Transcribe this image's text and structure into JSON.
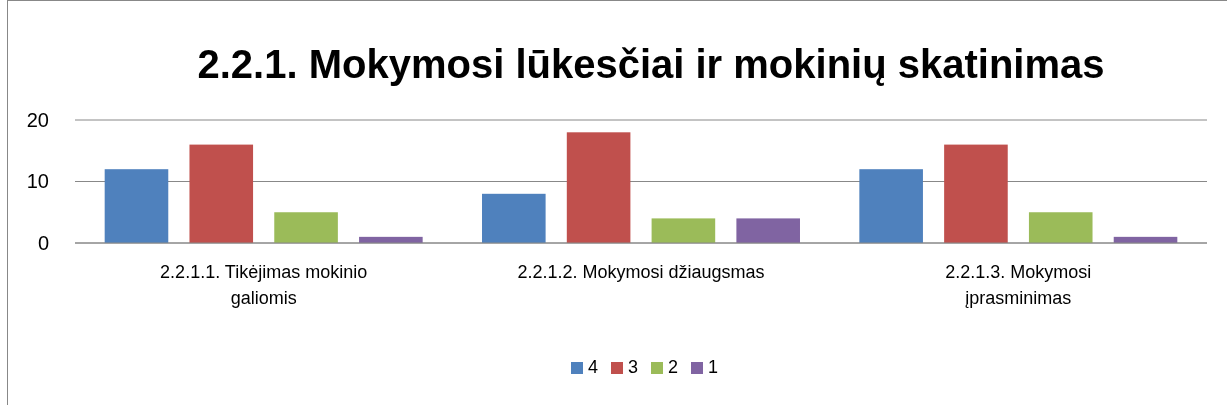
{
  "chart_data": {
    "type": "bar",
    "title": "2.2.1. Mokymosi lūkesčiai ir mokinių skatinimas",
    "categories": [
      "2.2.1.1. Tikėjimas mokinio galiomis",
      "2.2.1.2. Mokymosi džiaugsmas",
      "2.2.1.3. Mokymosi įprasminimas"
    ],
    "series": [
      {
        "name": "4",
        "color": "#4f81bd",
        "values": [
          12,
          8,
          12
        ]
      },
      {
        "name": "3",
        "color": "#c0504d",
        "values": [
          16,
          18,
          16
        ]
      },
      {
        "name": "2",
        "color": "#9bbb59",
        "values": [
          5,
          4,
          5
        ]
      },
      {
        "name": "1",
        "color": "#8064a2",
        "values": [
          1,
          4,
          1
        ]
      }
    ],
    "ylim": [
      0,
      20
    ],
    "yticks": [
      0,
      10,
      20
    ],
    "grid": "y",
    "legend": "bottom"
  }
}
